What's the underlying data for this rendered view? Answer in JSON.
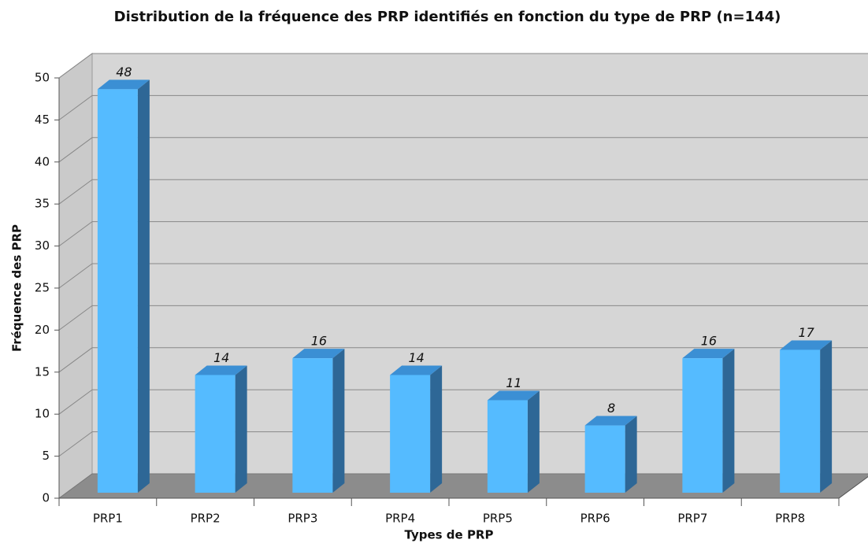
{
  "chart_data": {
    "type": "bar3d",
    "title": "Distribution de la fréquence des PRP identifiés en fonction du type de PRP (n=144)",
    "x_label": "Types de PRP",
    "y_label": "Fréquence des PRP",
    "categories": [
      "PRP1",
      "PRP2",
      "PRP3",
      "PRP4",
      "PRP5",
      "PRP6",
      "PRP7",
      "PRP8"
    ],
    "values": [
      48,
      14,
      16,
      14,
      11,
      8,
      16,
      17
    ],
    "color": "#55bbff",
    "ylim": [
      0,
      50
    ],
    "yticks": [
      0,
      5,
      10,
      15,
      20,
      25,
      30,
      35,
      40,
      45,
      50
    ],
    "grid": true
  }
}
